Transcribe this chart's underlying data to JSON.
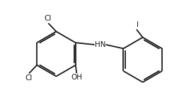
{
  "background_color": "#ffffff",
  "line_color": "#1a1a1a",
  "text_color": "#1a1a1a",
  "line_width": 1.3,
  "font_size": 7.5,
  "figsize": [
    2.77,
    1.55
  ],
  "dpi": 100,
  "labels": {
    "Cl_top": "Cl",
    "Cl_bottom": "Cl",
    "OH": "OH",
    "HN": "HN",
    "I": "I"
  },
  "xlim": [
    0,
    10
  ],
  "ylim": [
    0,
    5.59
  ]
}
